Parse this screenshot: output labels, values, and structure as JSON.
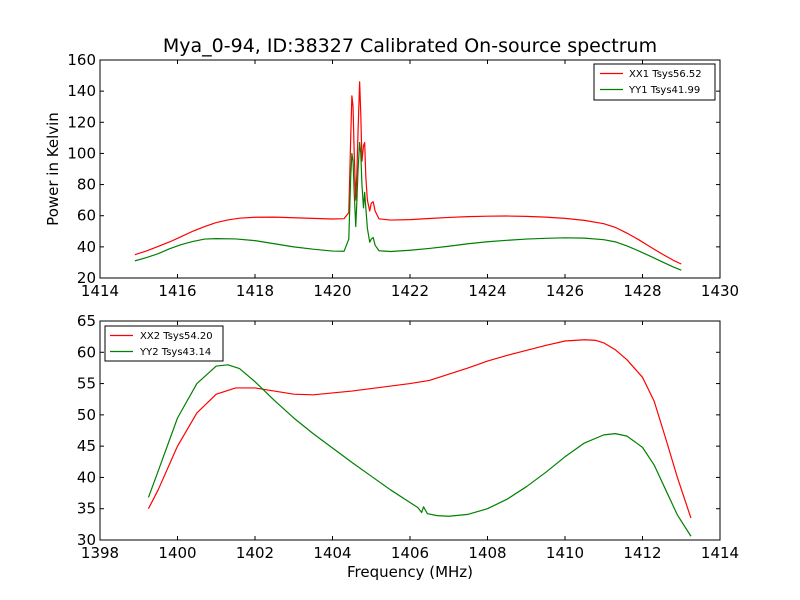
{
  "figure": {
    "title": "Mya_0-94, ID:38327 Calibrated On-source spectrum"
  },
  "chart_data": [
    {
      "type": "line",
      "title": "Mya_0-94, ID:38327 Calibrated On-source spectrum",
      "xlabel": "",
      "ylabel": "Power in Kelvin",
      "xlim": [
        1414,
        1430
      ],
      "ylim": [
        20,
        160
      ],
      "xticks": [
        1414,
        1416,
        1418,
        1420,
        1422,
        1424,
        1426,
        1428,
        1430
      ],
      "yticks": [
        20,
        40,
        60,
        80,
        100,
        120,
        140,
        160
      ],
      "grid": false,
      "legend_position": "top-right",
      "series": [
        {
          "name": "XX1 Tsys56.52",
          "color": "#ff0000",
          "points": [
            [
              1414.9,
              35
            ],
            [
              1415.2,
              37.4
            ],
            [
              1415.5,
              40.3
            ],
            [
              1415.8,
              43.2
            ],
            [
              1416.1,
              46.6
            ],
            [
              1416.4,
              50.1
            ],
            [
              1416.7,
              53
            ],
            [
              1417,
              55.6
            ],
            [
              1417.3,
              57.3
            ],
            [
              1417.6,
              58.4
            ],
            [
              1418,
              59
            ],
            [
              1418.5,
              59.1
            ],
            [
              1419,
              58.7
            ],
            [
              1419.5,
              58.3
            ],
            [
              1420,
              57.9
            ],
            [
              1420.3,
              58.1
            ],
            [
              1420.42,
              62
            ],
            [
              1420.47,
              110
            ],
            [
              1420.5,
              137
            ],
            [
              1420.53,
              130
            ],
            [
              1420.56,
              100
            ],
            [
              1420.6,
              70
            ],
            [
              1420.63,
              88
            ],
            [
              1420.66,
              115
            ],
            [
              1420.7,
              146
            ],
            [
              1420.73,
              125
            ],
            [
              1420.76,
              95
            ],
            [
              1420.8,
              105
            ],
            [
              1420.83,
              107
            ],
            [
              1420.86,
              85
            ],
            [
              1420.9,
              70
            ],
            [
              1420.96,
              63
            ],
            [
              1421,
              68
            ],
            [
              1421.05,
              69
            ],
            [
              1421.1,
              63
            ],
            [
              1421.2,
              58
            ],
            [
              1421.5,
              57.2
            ],
            [
              1422,
              57.5
            ],
            [
              1422.5,
              58.2
            ],
            [
              1423,
              58.9
            ],
            [
              1423.5,
              59.4
            ],
            [
              1424,
              59.7
            ],
            [
              1424.5,
              59.8
            ],
            [
              1425,
              59.6
            ],
            [
              1425.5,
              59.1
            ],
            [
              1426,
              58.3
            ],
            [
              1426.5,
              57
            ],
            [
              1427,
              54.9
            ],
            [
              1427.3,
              52.5
            ],
            [
              1427.6,
              48.8
            ],
            [
              1427.9,
              44.6
            ],
            [
              1428.2,
              40
            ],
            [
              1428.5,
              35.5
            ],
            [
              1428.8,
              31.3
            ],
            [
              1429,
              29
            ]
          ]
        },
        {
          "name": "YY1 Tsys41.99",
          "color": "#008000",
          "points": [
            [
              1414.9,
              31
            ],
            [
              1415.2,
              33.1
            ],
            [
              1415.5,
              35.6
            ],
            [
              1415.8,
              38.8
            ],
            [
              1416.1,
              41.5
            ],
            [
              1416.4,
              43.5
            ],
            [
              1416.7,
              45
            ],
            [
              1417,
              45.3
            ],
            [
              1417.5,
              45.1
            ],
            [
              1418,
              44
            ],
            [
              1418.5,
              42
            ],
            [
              1419,
              40
            ],
            [
              1419.5,
              38.5
            ],
            [
              1420,
              37.3
            ],
            [
              1420.3,
              37.2
            ],
            [
              1420.42,
              45
            ],
            [
              1420.47,
              85
            ],
            [
              1420.5,
              100
            ],
            [
              1420.53,
              95
            ],
            [
              1420.56,
              75
            ],
            [
              1420.6,
              53
            ],
            [
              1420.63,
              70
            ],
            [
              1420.66,
              90
            ],
            [
              1420.7,
              107
            ],
            [
              1420.73,
              100
            ],
            [
              1420.76,
              80
            ],
            [
              1420.8,
              65
            ],
            [
              1420.83,
              75
            ],
            [
              1420.86,
              65
            ],
            [
              1420.9,
              52
            ],
            [
              1420.96,
              43
            ],
            [
              1421,
              45
            ],
            [
              1421.05,
              46
            ],
            [
              1421.1,
              41
            ],
            [
              1421.2,
              37.5
            ],
            [
              1421.5,
              37
            ],
            [
              1422,
              37.8
            ],
            [
              1422.5,
              39
            ],
            [
              1423,
              40.4
            ],
            [
              1423.5,
              42
            ],
            [
              1424,
              43.3
            ],
            [
              1424.5,
              44.2
            ],
            [
              1425,
              45
            ],
            [
              1425.5,
              45.5
            ],
            [
              1426,
              45.8
            ],
            [
              1426.5,
              45.6
            ],
            [
              1427,
              44.6
            ],
            [
              1427.3,
              43.2
            ],
            [
              1427.6,
              40.6
            ],
            [
              1427.9,
              37.4
            ],
            [
              1428.2,
              34
            ],
            [
              1428.5,
              30.5
            ],
            [
              1428.8,
              27
            ],
            [
              1429,
              25
            ]
          ]
        }
      ]
    },
    {
      "type": "line",
      "title": "",
      "xlabel": "Frequency (MHz)",
      "ylabel": "",
      "xlim": [
        1398,
        1414
      ],
      "ylim": [
        30,
        65
      ],
      "xticks": [
        1398,
        1400,
        1402,
        1404,
        1406,
        1408,
        1410,
        1412,
        1414
      ],
      "yticks": [
        30,
        35,
        40,
        45,
        50,
        55,
        60,
        65
      ],
      "grid": false,
      "legend_position": "top-left",
      "series": [
        {
          "name": "XX2 Tsys54.20",
          "color": "#ff0000",
          "points": [
            [
              1399.25,
              35
            ],
            [
              1399.5,
              38
            ],
            [
              1400,
              45
            ],
            [
              1400.5,
              50.3
            ],
            [
              1401,
              53.3
            ],
            [
              1401.5,
              54.3
            ],
            [
              1402,
              54.3
            ],
            [
              1402.5,
              53.8
            ],
            [
              1403,
              53.3
            ],
            [
              1403.5,
              53.2
            ],
            [
              1404,
              53.5
            ],
            [
              1404.5,
              53.8
            ],
            [
              1405,
              54.2
            ],
            [
              1405.5,
              54.6
            ],
            [
              1406,
              55
            ],
            [
              1406.5,
              55.5
            ],
            [
              1407,
              56.5
            ],
            [
              1407.5,
              57.5
            ],
            [
              1408,
              58.6
            ],
            [
              1408.5,
              59.5
            ],
            [
              1409,
              60.3
            ],
            [
              1409.5,
              61.1
            ],
            [
              1410,
              61.8
            ],
            [
              1410.5,
              62
            ],
            [
              1410.8,
              61.9
            ],
            [
              1411,
              61.5
            ],
            [
              1411.3,
              60.4
            ],
            [
              1411.6,
              58.8
            ],
            [
              1412,
              56
            ],
            [
              1412.3,
              52.2
            ],
            [
              1412.6,
              46.2
            ],
            [
              1412.9,
              40
            ],
            [
              1413.25,
              33.5
            ]
          ]
        },
        {
          "name": "YY2 Tsys43.14",
          "color": "#008000",
          "points": [
            [
              1399.25,
              36.8
            ],
            [
              1399.5,
              41
            ],
            [
              1400,
              49.5
            ],
            [
              1400.5,
              55
            ],
            [
              1401,
              57.8
            ],
            [
              1401.3,
              58
            ],
            [
              1401.6,
              57.4
            ],
            [
              1402,
              55.3
            ],
            [
              1402.5,
              52.3
            ],
            [
              1403,
              49.5
            ],
            [
              1403.5,
              47
            ],
            [
              1404,
              44.7
            ],
            [
              1404.5,
              42.4
            ],
            [
              1405,
              40.2
            ],
            [
              1405.5,
              38
            ],
            [
              1406,
              36
            ],
            [
              1406.2,
              35.2
            ],
            [
              1406.3,
              34.4
            ],
            [
              1406.35,
              35.3
            ],
            [
              1406.45,
              34.2
            ],
            [
              1406.7,
              33.9
            ],
            [
              1407,
              33.8
            ],
            [
              1407.5,
              34.1
            ],
            [
              1408,
              35
            ],
            [
              1408.5,
              36.5
            ],
            [
              1409,
              38.5
            ],
            [
              1409.5,
              40.8
            ],
            [
              1410,
              43.3
            ],
            [
              1410.5,
              45.5
            ],
            [
              1411,
              46.8
            ],
            [
              1411.3,
              47
            ],
            [
              1411.6,
              46.6
            ],
            [
              1412,
              44.8
            ],
            [
              1412.3,
              42
            ],
            [
              1412.6,
              38
            ],
            [
              1412.9,
              34
            ],
            [
              1413.25,
              30.6
            ]
          ]
        }
      ]
    }
  ]
}
